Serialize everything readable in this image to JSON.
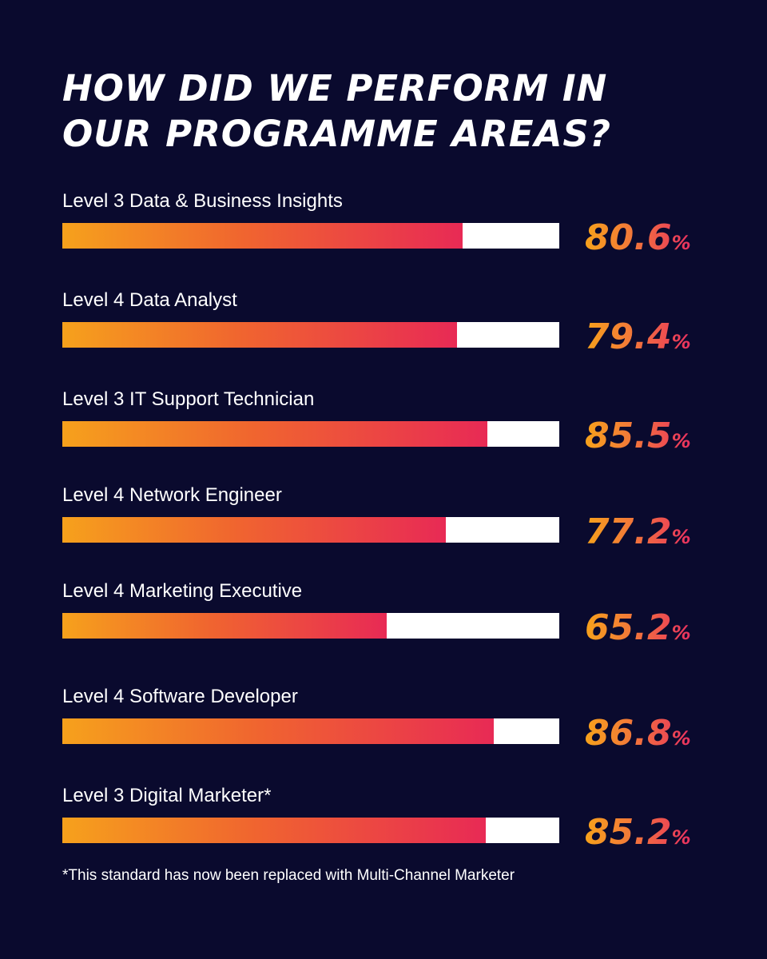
{
  "title_lines": [
    "HOW DID WE PERFORM IN",
    "OUR PROGRAMME AREAS?"
  ],
  "chart_data": {
    "type": "bar",
    "orientation": "horizontal",
    "categories": [
      "Level 3 Data & Business Insights",
      "Level 4 Data Analyst",
      "Level 3 IT Support Technician",
      "Level 4 Network Engineer",
      "Level 4 Marketing Executive",
      "Level 4 Software Developer",
      "Level 3 Digital Marketer*"
    ],
    "values": [
      80.6,
      79.4,
      85.5,
      77.2,
      65.2,
      86.8,
      85.2
    ],
    "value_suffix": "%",
    "xlim": [
      0,
      100
    ],
    "grid": false
  },
  "footnote": "*This standard has now been replaced with Multi-Channel Marketer",
  "colors": {
    "background": "#0a0a2e",
    "gradient_start": "#f6a11c",
    "gradient_end": "#e82a55",
    "track": "#ffffff"
  }
}
